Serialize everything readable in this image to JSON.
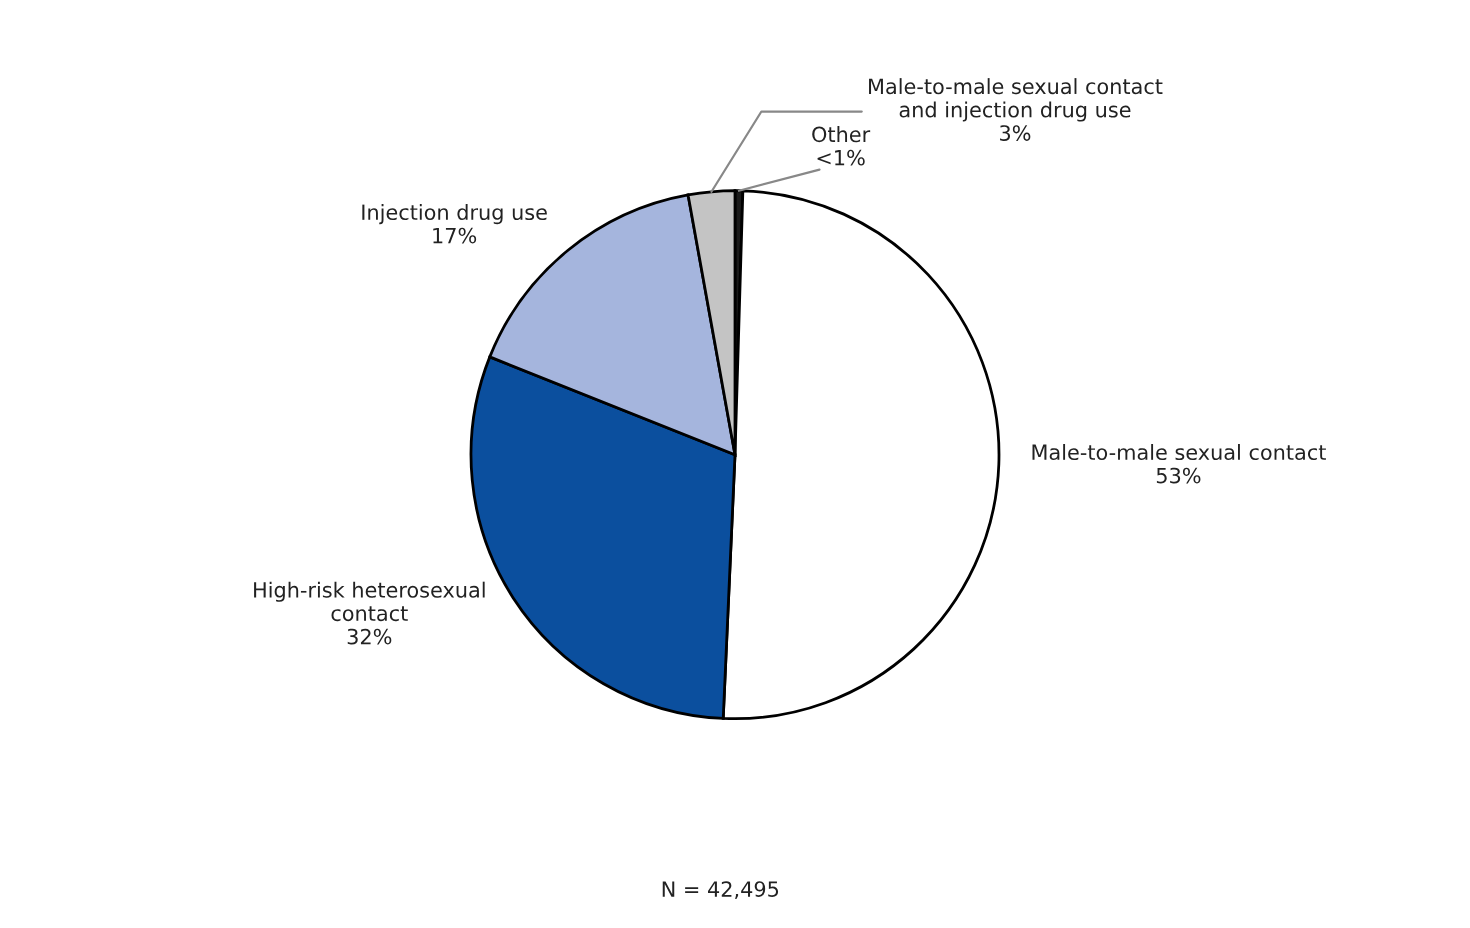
{
  "chart_data": {
    "type": "pie",
    "categories": [
      "Other",
      "Male-to-male sexual contact",
      "High-risk heterosexual\ncontact",
      "Injection drug use",
      "Male-to-male sexual contact\nand injection drug use"
    ],
    "values": [
      0.5,
      53,
      32,
      17,
      3
    ],
    "value_labels": [
      "<1%",
      "53%",
      "32%",
      "17%",
      "3%"
    ],
    "colors": [
      "#1a1a1a",
      "#ffffff",
      "#0b4f9e",
      "#a5b5dd",
      "#c4c4c4"
    ],
    "annotations": [
      "N = 42,495"
    ]
  }
}
